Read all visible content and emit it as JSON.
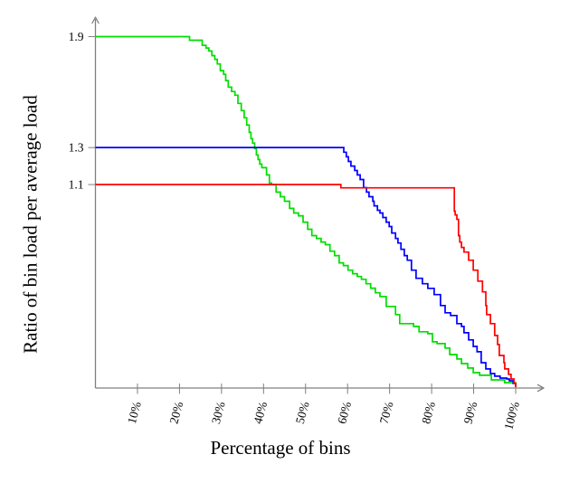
{
  "chart_data": {
    "type": "line",
    "step": true,
    "title": "",
    "xlabel": "Percentage of bins",
    "ylabel": "Ratio of bin load per average load",
    "xlim": [
      0,
      106.5
    ],
    "ylim": [
      0,
      2.0
    ],
    "grid": false,
    "legend": "none",
    "axis_color": "#7f7f7f",
    "text_color": "#000000",
    "x_ticks": [
      {
        "value": 10,
        "label": "10%"
      },
      {
        "value": 20,
        "label": "20%"
      },
      {
        "value": 30,
        "label": "30%"
      },
      {
        "value": 40,
        "label": "40%"
      },
      {
        "value": 50,
        "label": "50%"
      },
      {
        "value": 60,
        "label": "60%"
      },
      {
        "value": 70,
        "label": "70%"
      },
      {
        "value": 80,
        "label": "80%"
      },
      {
        "value": 90,
        "label": "90%"
      },
      {
        "value": 100,
        "label": "100%"
      }
    ],
    "y_ticks": [
      {
        "value": 1.9,
        "label": "1.9"
      },
      {
        "value": 1.3,
        "label": "1.3"
      },
      {
        "value": 1.1,
        "label": "1.1"
      }
    ],
    "series": [
      {
        "name": "green",
        "color": "#00dd00",
        "points": [
          [
            0,
            1.9
          ],
          [
            21.8,
            1.9
          ],
          [
            22.4,
            1.88
          ],
          [
            24.9,
            1.88
          ],
          [
            25.4,
            1.853
          ],
          [
            26.3,
            1.838
          ],
          [
            27.0,
            1.822
          ],
          [
            27.7,
            1.797
          ],
          [
            28.4,
            1.777
          ],
          [
            29.0,
            1.752
          ],
          [
            29.7,
            1.716
          ],
          [
            30.5,
            1.696
          ],
          [
            31.0,
            1.662
          ],
          [
            31.6,
            1.627
          ],
          [
            32.4,
            1.603
          ],
          [
            33.2,
            1.583
          ],
          [
            33.9,
            1.539
          ],
          [
            34.7,
            1.5
          ],
          [
            35.4,
            1.461
          ],
          [
            36.0,
            1.422
          ],
          [
            36.6,
            1.382
          ],
          [
            37.0,
            1.348
          ],
          [
            37.4,
            1.324
          ],
          [
            37.9,
            1.294
          ],
          [
            38.3,
            1.26
          ],
          [
            38.7,
            1.235
          ],
          [
            39.1,
            1.211
          ],
          [
            39.6,
            1.191
          ],
          [
            40.7,
            1.152
          ],
          [
            41.4,
            1.108
          ],
          [
            41.9,
            1.1
          ],
          [
            43.0,
            1.059
          ],
          [
            44.0,
            1.034
          ],
          [
            45.0,
            1.01
          ],
          [
            46.2,
            0.971
          ],
          [
            47.2,
            0.946
          ],
          [
            48.3,
            0.931
          ],
          [
            49.4,
            0.897
          ],
          [
            50.5,
            0.858
          ],
          [
            51.5,
            0.824
          ],
          [
            52.6,
            0.809
          ],
          [
            53.7,
            0.789
          ],
          [
            54.7,
            0.775
          ],
          [
            55.8,
            0.74
          ],
          [
            56.9,
            0.716
          ],
          [
            58.0,
            0.677
          ],
          [
            59.0,
            0.662
          ],
          [
            60.1,
            0.637
          ],
          [
            61.2,
            0.618
          ],
          [
            62.3,
            0.603
          ],
          [
            63.3,
            0.588
          ],
          [
            64.4,
            0.564
          ],
          [
            65.5,
            0.54
          ],
          [
            66.6,
            0.515
          ],
          [
            67.7,
            0.495
          ],
          [
            69.2,
            0.441
          ],
          [
            71.4,
            0.397
          ],
          [
            72.4,
            0.348
          ],
          [
            75.7,
            0.333
          ],
          [
            77.0,
            0.304
          ],
          [
            79.1,
            0.294
          ],
          [
            80.2,
            0.25
          ],
          [
            81.3,
            0.24
          ],
          [
            83.2,
            0.216
          ],
          [
            84.3,
            0.181
          ],
          [
            86.0,
            0.157
          ],
          [
            87.1,
            0.132
          ],
          [
            88.6,
            0.108
          ],
          [
            89.9,
            0.083
          ],
          [
            91.4,
            0.069
          ],
          [
            94.0,
            0.069
          ],
          [
            94.2,
            0.044
          ],
          [
            96.8,
            0.044
          ],
          [
            97.4,
            0.029
          ],
          [
            99.4,
            0.029
          ],
          [
            100,
            0.005
          ]
        ]
      },
      {
        "name": "blue",
        "color": "#0000ff",
        "points": [
          [
            0,
            1.3
          ],
          [
            58.2,
            1.3
          ],
          [
            59.1,
            1.275
          ],
          [
            59.7,
            1.25
          ],
          [
            60.2,
            1.225
          ],
          [
            60.8,
            1.2
          ],
          [
            61.7,
            1.176
          ],
          [
            62.3,
            1.152
          ],
          [
            63.0,
            1.127
          ],
          [
            63.8,
            1.083
          ],
          [
            64.5,
            1.059
          ],
          [
            65.1,
            1.034
          ],
          [
            66.0,
            1.01
          ],
          [
            66.3,
            0.985
          ],
          [
            67.1,
            0.961
          ],
          [
            67.7,
            0.946
          ],
          [
            68.4,
            0.922
          ],
          [
            69.2,
            0.897
          ],
          [
            69.9,
            0.873
          ],
          [
            70.5,
            0.838
          ],
          [
            71.4,
            0.809
          ],
          [
            72.0,
            0.784
          ],
          [
            72.7,
            0.75
          ],
          [
            73.5,
            0.716
          ],
          [
            74.2,
            0.691
          ],
          [
            75.2,
            0.637
          ],
          [
            76.3,
            0.593
          ],
          [
            77.8,
            0.564
          ],
          [
            79.1,
            0.539
          ],
          [
            80.6,
            0.505
          ],
          [
            82.1,
            0.446
          ],
          [
            83.2,
            0.407
          ],
          [
            84.5,
            0.392
          ],
          [
            86.0,
            0.348
          ],
          [
            87.1,
            0.333
          ],
          [
            87.7,
            0.299
          ],
          [
            88.8,
            0.26
          ],
          [
            89.9,
            0.225
          ],
          [
            90.8,
            0.196
          ],
          [
            91.8,
            0.137
          ],
          [
            92.9,
            0.103
          ],
          [
            94.0,
            0.078
          ],
          [
            95.0,
            0.064
          ],
          [
            96.3,
            0.054
          ],
          [
            97.9,
            0.049
          ],
          [
            98.5,
            0.039
          ],
          [
            99.4,
            0.025
          ],
          [
            100,
            0.01
          ]
        ]
      },
      {
        "name": "red",
        "color": "#ff0000",
        "points": [
          [
            0,
            1.1
          ],
          [
            58.1,
            1.1
          ],
          [
            58.4,
            1.082
          ],
          [
            84.7,
            1.082
          ],
          [
            85.4,
            0.956
          ],
          [
            85.6,
            0.936
          ],
          [
            86.0,
            0.912
          ],
          [
            86.4,
            0.824
          ],
          [
            86.7,
            0.789
          ],
          [
            87.1,
            0.76
          ],
          [
            87.7,
            0.735
          ],
          [
            88.8,
            0.691
          ],
          [
            89.9,
            0.637
          ],
          [
            91.0,
            0.578
          ],
          [
            92.1,
            0.52
          ],
          [
            92.9,
            0.446
          ],
          [
            93.1,
            0.397
          ],
          [
            94.0,
            0.348
          ],
          [
            95.0,
            0.284
          ],
          [
            95.7,
            0.235
          ],
          [
            96.1,
            0.176
          ],
          [
            97.2,
            0.137
          ],
          [
            97.4,
            0.103
          ],
          [
            98.3,
            0.074
          ],
          [
            98.9,
            0.049
          ],
          [
            99.6,
            0.025
          ],
          [
            100,
            0.005
          ]
        ]
      }
    ]
  }
}
